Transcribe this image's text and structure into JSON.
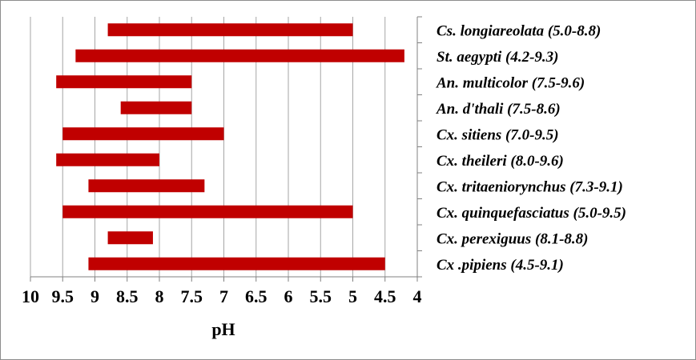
{
  "chart_data": {
    "type": "bar",
    "orientation": "horizontal-range",
    "xlabel": "pH",
    "x_reversed": true,
    "xlim": [
      4,
      10
    ],
    "xticks": [
      "10",
      "9.5",
      "9",
      "8.5",
      "8",
      "7.5",
      "7",
      "6.5",
      "6",
      "5.5",
      "5",
      "4.5",
      "4"
    ],
    "grid": "vertical",
    "bar_color": "#c00000",
    "categories": [
      "Cs. longiareolata (5.0-8.8)",
      "St. aegypti (4.2-9.3)",
      "An. multicolor (7.5-9.6)",
      "An. d'thali (7.5-8.6)",
      "Cx. sitiens (7.0-9.5)",
      "Cx. theileri (8.0-9.6)",
      "Cx. tritaeniorynchus (7.3-9.1)",
      "Cx. quinquefasciatus (5.0-9.5)",
      "Cx. perexiguus (8.1-8.8)",
      "Cx .pipiens (4.5-9.1)"
    ],
    "ranges": [
      [
        5.0,
        8.8
      ],
      [
        4.2,
        9.3
      ],
      [
        7.5,
        9.6
      ],
      [
        7.5,
        8.6
      ],
      [
        7.0,
        9.5
      ],
      [
        8.0,
        9.6
      ],
      [
        7.3,
        9.1
      ],
      [
        5.0,
        9.5
      ],
      [
        8.1,
        8.8
      ],
      [
        4.5,
        9.1
      ]
    ]
  }
}
